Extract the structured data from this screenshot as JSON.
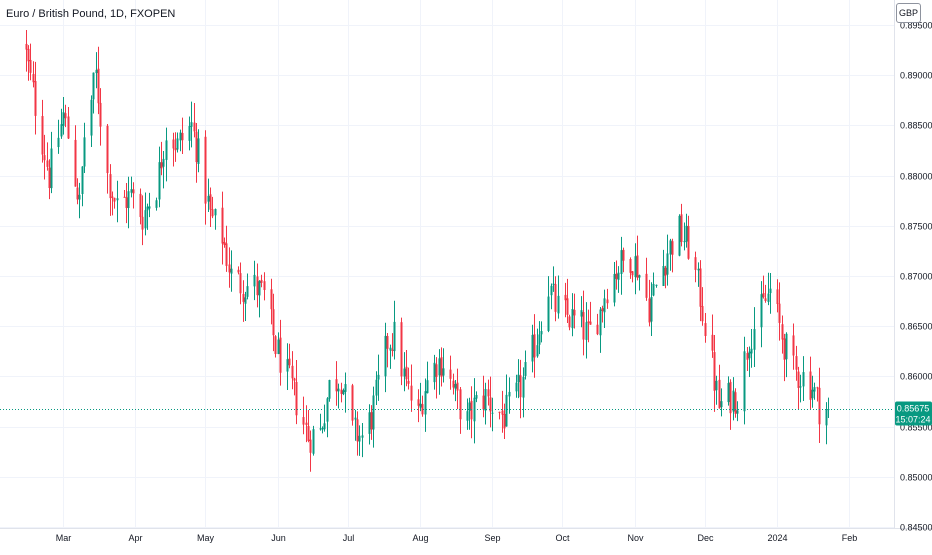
{
  "header": {
    "title": "Euro / British Pound, 1D, FXOPEN"
  },
  "currency_button": {
    "label": "GBP"
  },
  "last_price": {
    "value": "0.85675",
    "countdown": "15:07:24"
  },
  "colors": {
    "up": "#089981",
    "down": "#f23645",
    "grid": "#f0f3fa",
    "axis_text": "#131722"
  },
  "chart_data": {
    "type": "candlestick",
    "title": "Euro / British Pound, 1D, FXOPEN",
    "x_tick_labels": [
      "Mar",
      "Apr",
      "May",
      "Jun",
      "Jul",
      "Aug",
      "Sep",
      "Oct",
      "Nov",
      "Dec",
      "2024",
      "Feb"
    ],
    "y_tick_labels": [
      "0.89500",
      "0.89000",
      "0.88500",
      "0.88000",
      "0.87500",
      "0.87000",
      "0.86500",
      "0.86000",
      "0.85500",
      "0.85000",
      "0.84500"
    ],
    "ylim": [
      0.8449,
      0.8975
    ],
    "last_price": 0.85675,
    "grid": true,
    "close_anchors": [
      [
        "2023-02-13",
        0.892
      ],
      [
        "2023-02-17",
        0.887
      ],
      [
        "2023-02-23",
        0.88
      ],
      [
        "2023-03-01",
        0.886
      ],
      [
        "2023-03-03",
        0.884
      ],
      [
        "2023-03-08",
        0.877
      ],
      [
        "2023-03-10",
        0.884
      ],
      [
        "2023-03-15",
        0.89
      ],
      [
        "2023-03-20",
        0.88
      ],
      [
        "2023-03-24",
        0.877
      ],
      [
        "2023-03-30",
        0.878
      ],
      [
        "2023-04-04",
        0.876
      ],
      [
        "2023-04-10",
        0.879
      ],
      [
        "2023-04-14",
        0.8845
      ],
      [
        "2023-04-19",
        0.883
      ],
      [
        "2023-04-25",
        0.885
      ],
      [
        "2023-04-28",
        0.882
      ],
      [
        "2023-05-03",
        0.876
      ],
      [
        "2023-05-08",
        0.874
      ],
      [
        "2023-05-12",
        0.87
      ],
      [
        "2023-05-17",
        0.869
      ],
      [
        "2023-05-22",
        0.869
      ],
      [
        "2023-05-26",
        0.868
      ],
      [
        "2023-05-31",
        0.863
      ],
      [
        "2023-06-05",
        0.86
      ],
      [
        "2023-06-09",
        0.8575
      ],
      [
        "2023-06-14",
        0.854
      ],
      [
        "2023-06-19",
        0.8545
      ],
      [
        "2023-06-23",
        0.859
      ],
      [
        "2023-06-28",
        0.86
      ],
      [
        "2023-07-03",
        0.8545
      ],
      [
        "2023-07-07",
        0.854
      ],
      [
        "2023-07-11",
        0.856
      ],
      [
        "2023-07-14",
        0.859
      ],
      [
        "2023-07-18",
        0.8635
      ],
      [
        "2023-07-21",
        0.864
      ],
      [
        "2023-07-26",
        0.859
      ],
      [
        "2023-07-31",
        0.856
      ],
      [
        "2023-08-03",
        0.859
      ],
      [
        "2023-08-08",
        0.8615
      ],
      [
        "2023-08-11",
        0.8615
      ],
      [
        "2023-08-16",
        0.858
      ],
      [
        "2023-08-21",
        0.8555
      ],
      [
        "2023-08-24",
        0.857
      ],
      [
        "2023-08-29",
        0.858
      ],
      [
        "2023-09-01",
        0.857
      ],
      [
        "2023-09-06",
        0.856
      ],
      [
        "2023-09-11",
        0.858
      ],
      [
        "2023-09-15",
        0.86
      ],
      [
        "2023-09-20",
        0.864
      ],
      [
        "2023-09-25",
        0.869
      ],
      [
        "2023-09-28",
        0.867
      ],
      [
        "2023-10-03",
        0.866
      ],
      [
        "2023-10-09",
        0.865
      ],
      [
        "2023-10-12",
        0.864
      ],
      [
        "2023-10-17",
        0.8665
      ],
      [
        "2023-10-20",
        0.869
      ],
      [
        "2023-10-25",
        0.871
      ],
      [
        "2023-10-30",
        0.872
      ],
      [
        "2023-11-02",
        0.871
      ],
      [
        "2023-11-07",
        0.867
      ],
      [
        "2023-11-10",
        0.869
      ],
      [
        "2023-11-15",
        0.8725
      ],
      [
        "2023-11-20",
        0.8745
      ],
      [
        "2023-11-24",
        0.873
      ],
      [
        "2023-11-29",
        0.868
      ],
      [
        "2023-12-04",
        0.861
      ],
      [
        "2023-12-07",
        0.857
      ],
      [
        "2023-12-12",
        0.858
      ],
      [
        "2023-12-15",
        0.858
      ],
      [
        "2023-12-20",
        0.864
      ],
      [
        "2023-12-26",
        0.867
      ],
      [
        "2023-12-29",
        0.8685
      ],
      [
        "2024-01-03",
        0.864
      ],
      [
        "2024-01-08",
        0.8605
      ],
      [
        "2024-01-12",
        0.86
      ],
      [
        "2024-01-16",
        0.859
      ],
      [
        "2024-01-19",
        0.857
      ],
      [
        "2024-01-23",
        0.8567
      ]
    ]
  }
}
